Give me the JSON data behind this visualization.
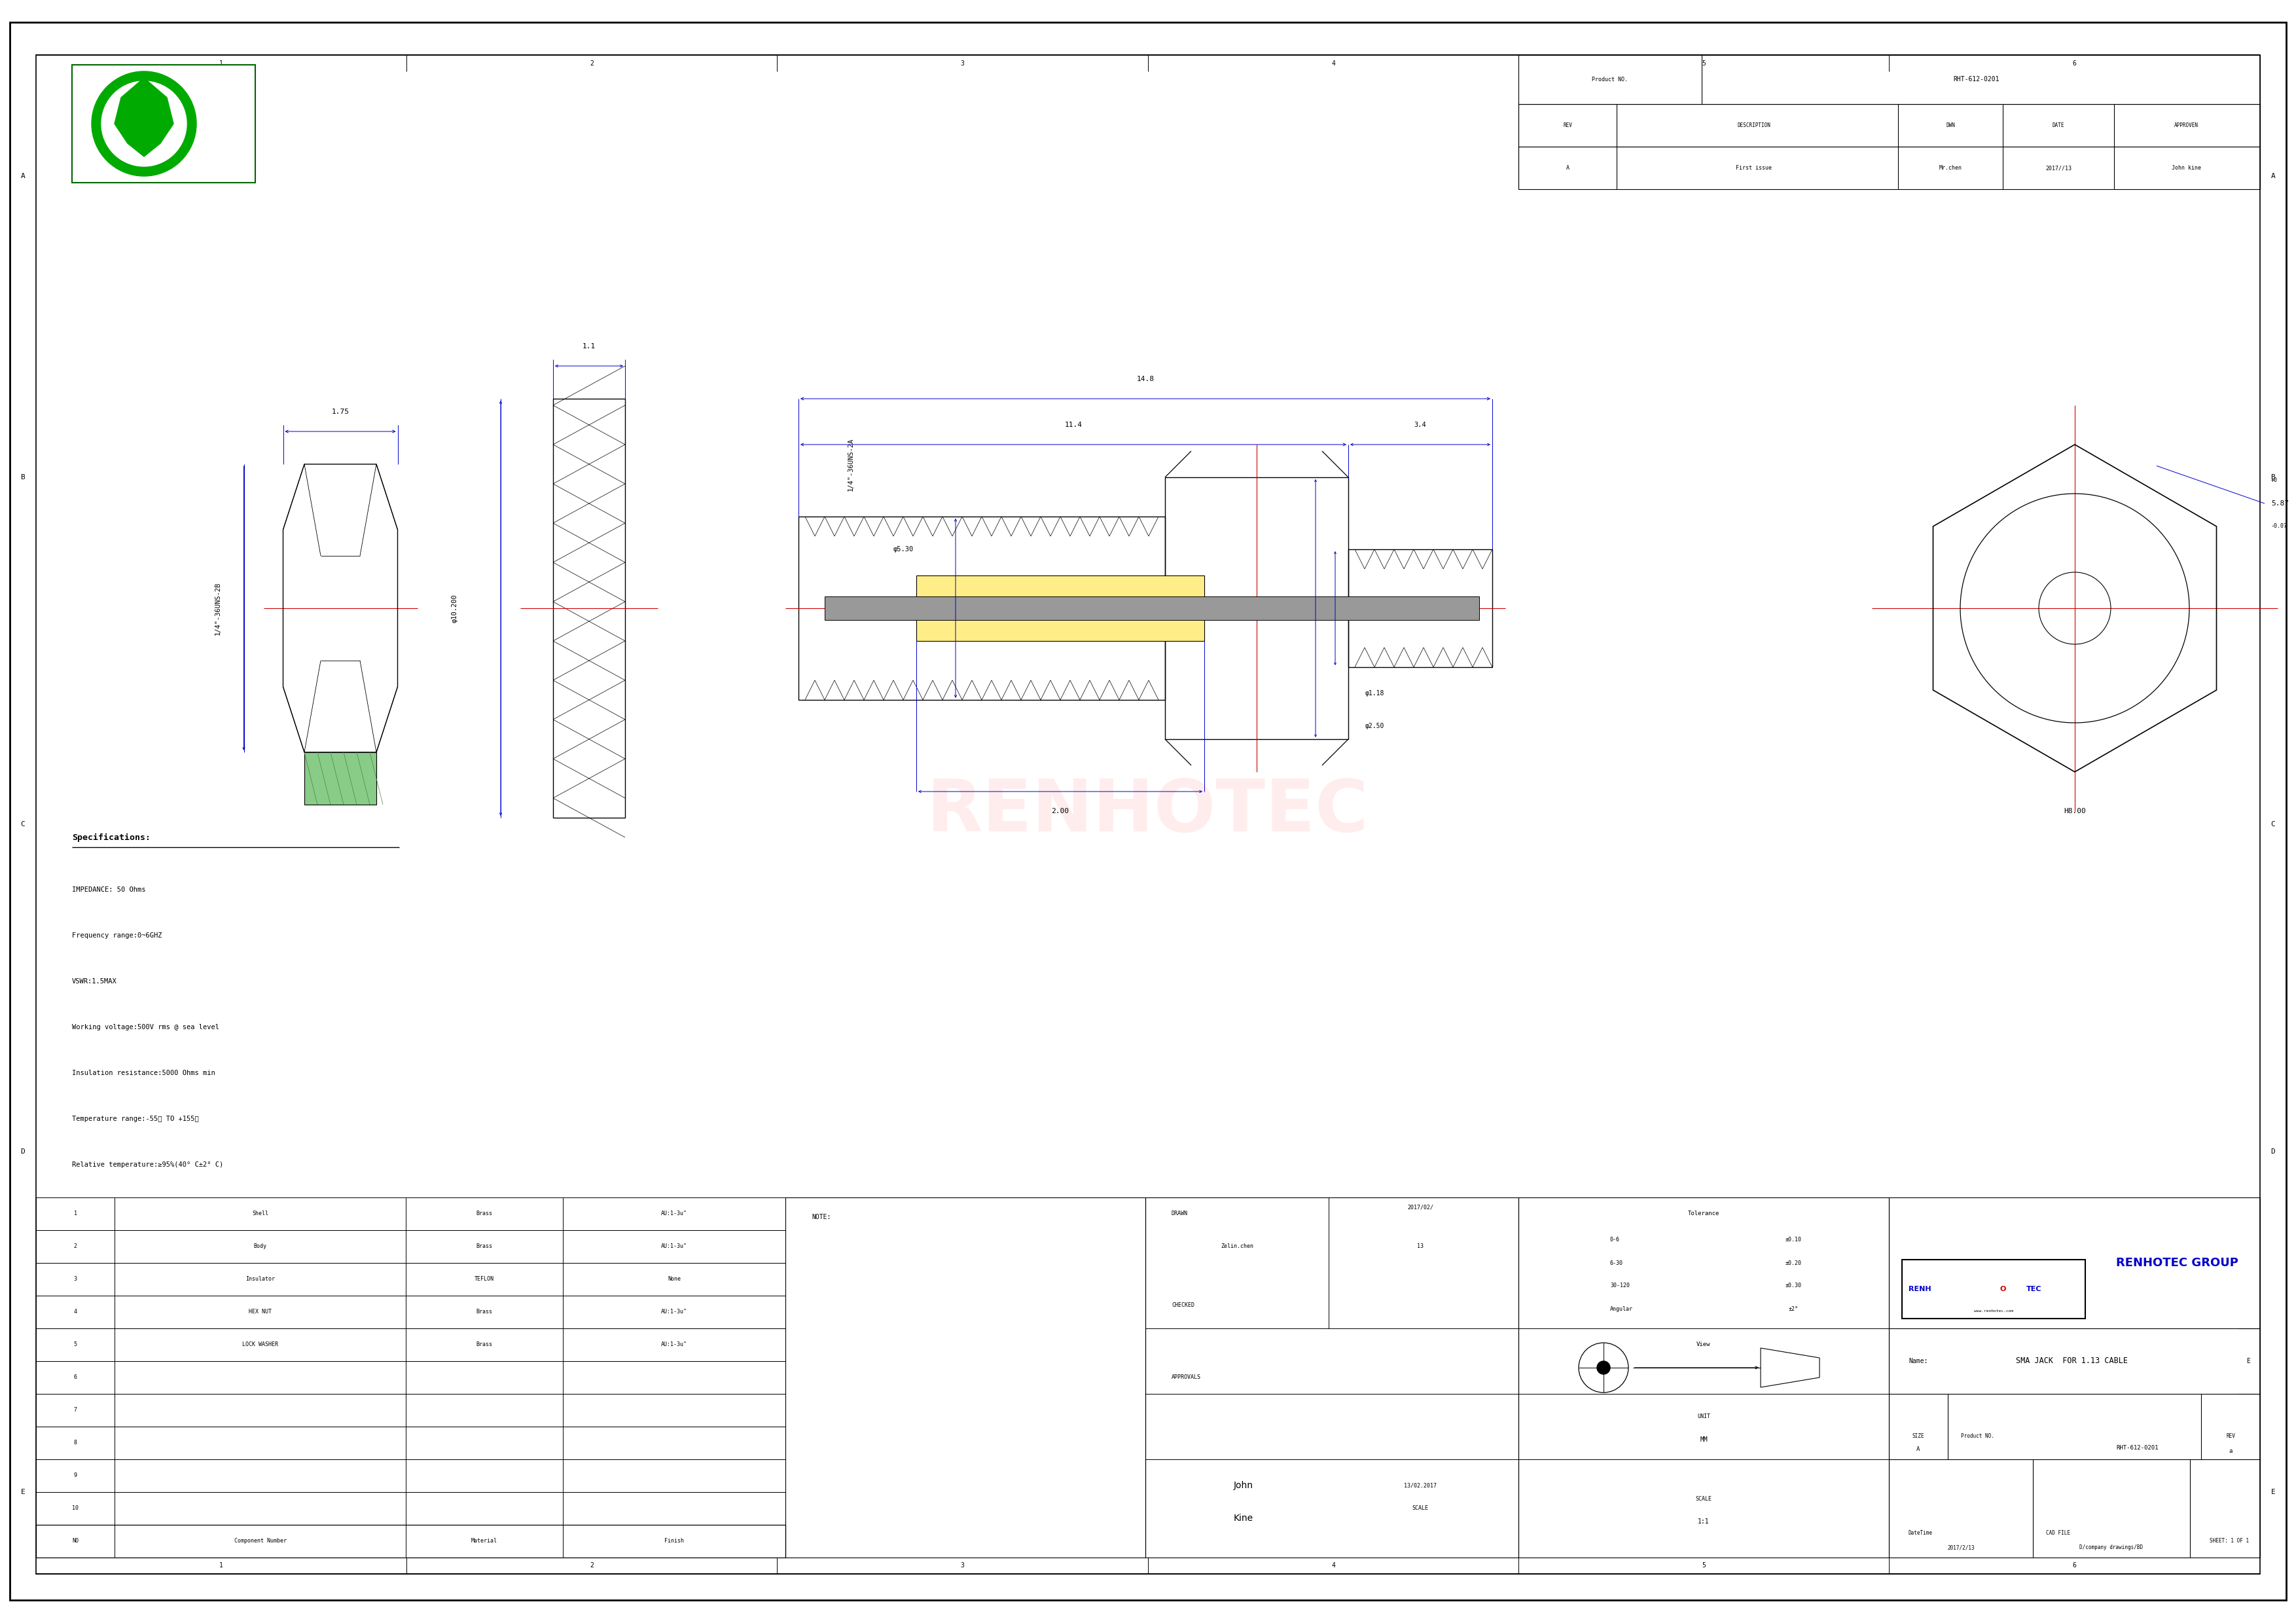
{
  "page_bg": "#ffffff",
  "blue": "#0000cc",
  "red": "#cc0000",
  "black": "#000000",
  "green_dark": "#006600",
  "green_light": "#00aa00",
  "product_no": "RHT-612-0201",
  "rev_val": "A",
  "desc_val": "First issue",
  "dwn_val": "Mr.chen",
  "date_val": "2017//13",
  "approven_val": "John kine",
  "specs": [
    "Specifications:",
    "IMPEDANCE: 50 Ohms",
    "Frequency range:0~6GHZ",
    "VSWR:1.5MAX",
    "Working voltage:500V rms @ sea level",
    "Insulation resistance:5000 Ohms min",
    "Temperature range:-55℃ TO +155℃",
    "Relative temperature:≥95%(40° C±2° C)"
  ],
  "bom": [
    [
      "1",
      "Shell",
      "Brass",
      "AU:1-3u\""
    ],
    [
      "2",
      "Body",
      "Brass",
      "AU:1-3u\""
    ],
    [
      "3",
      "Insulator",
      "TEFLON",
      "None"
    ],
    [
      "4",
      "HEX NUT",
      "Brass",
      "AU:1-3u\""
    ],
    [
      "5",
      "LOCK WASHER",
      "Brass",
      "AU:1-3u\""
    ],
    [
      "6",
      "",
      "",
      ""
    ],
    [
      "7",
      "",
      "",
      ""
    ],
    [
      "8",
      "",
      "",
      ""
    ],
    [
      "9",
      "",
      "",
      ""
    ],
    [
      "10",
      "",
      "",
      ""
    ]
  ],
  "tol_ranges": [
    "0-6",
    "6-30",
    "30-120",
    "Angular"
  ],
  "tol_vals": [
    "±0.10",
    "±0.20",
    "±0.30",
    "±2°"
  ],
  "company_name": "RENHOTEC GROUP",
  "website": "www.renhotec.com",
  "part_name": "SMA JACK  FOR 1.13 CABLE",
  "drawn_name": "Zelin.chen",
  "watermark": "RENHOTEC",
  "col_labels": [
    "1",
    "2",
    "3",
    "4",
    "5",
    "6"
  ],
  "row_labels": [
    "A",
    "B",
    "C",
    "D",
    "E"
  ],
  "datetime_val": "2017/2/13",
  "cad_val": "D/company drawings/BD",
  "sheet_val": "SHEET: 1 OF 1"
}
